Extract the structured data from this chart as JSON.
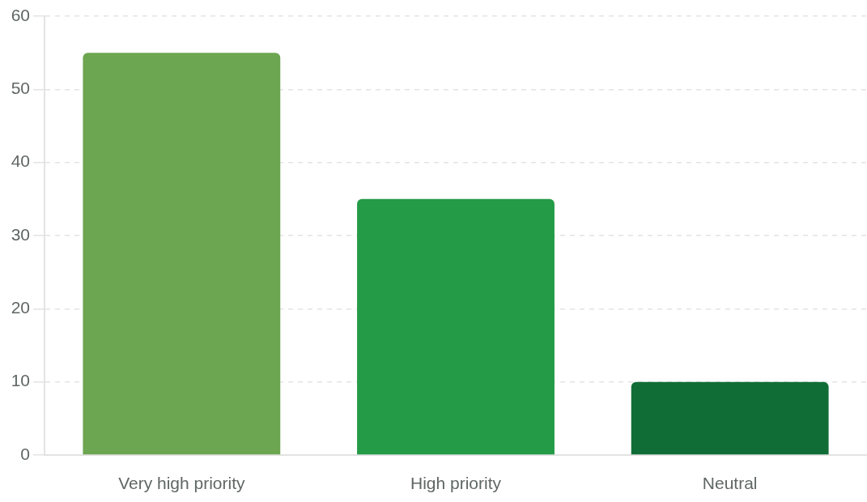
{
  "chart_data": {
    "type": "bar",
    "categories": [
      "Very high priority",
      "High priority",
      "Neutral"
    ],
    "values": [
      55,
      35,
      10
    ],
    "colors": [
      "#6ca650",
      "#239b47",
      "#116d36"
    ],
    "ylim": [
      0,
      60
    ],
    "yticks": [
      0,
      10,
      20,
      30,
      40,
      50,
      60
    ],
    "grid": "y"
  }
}
